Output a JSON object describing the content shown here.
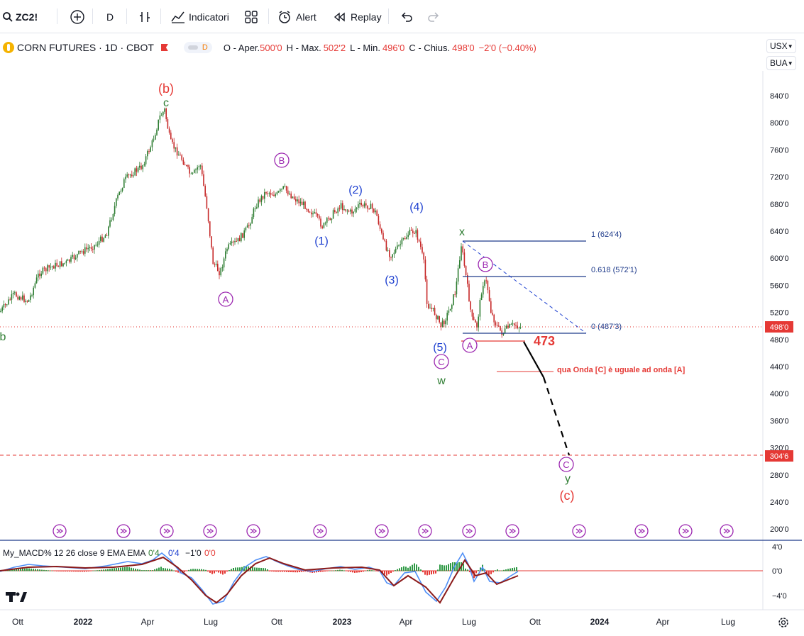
{
  "toolbar": {
    "symbol": "ZC2!",
    "interval": "D",
    "indicators_label": "Indicatori",
    "alert_label": "Alert",
    "replay_label": "Replay"
  },
  "legend": {
    "title": "CORN FUTURES · 1D · CBOT",
    "badge": "D",
    "o_label": "O - Aper.",
    "o_value": "500'0",
    "h_label": "H - Max.",
    "h_value": "502'2",
    "l_label": "L - Min.",
    "l_value": "496'0",
    "c_label": "C - Chius.",
    "c_value": "498'0",
    "change": "−2'0 (−0.40%)"
  },
  "right_controls": {
    "currency": "USX",
    "unit": "BUA"
  },
  "price_axis": {
    "ticks": [
      "840'0",
      "800'0",
      "760'0",
      "720'0",
      "680'0",
      "640'0",
      "600'0",
      "560'0",
      "520'0",
      "480'0",
      "440'0",
      "400'0",
      "360'0",
      "320'0",
      "280'0",
      "240'0",
      "200'0"
    ],
    "last_price": "498'0",
    "target_price": "304'6"
  },
  "time_axis": {
    "ticks": [
      "Ott",
      "2022",
      "Apr",
      "Lug",
      "Ott",
      "2023",
      "Apr",
      "Lug",
      "Ott",
      "2024",
      "Apr",
      "Lug"
    ]
  },
  "fib": {
    "level_1": "1 (624'4)",
    "level_0618": "0.618 (572'1)",
    "level_0": "0 (487'3)"
  },
  "annotations": {
    "b_red": "(b)",
    "c_green": "c",
    "b_green": "b",
    "B_circle_1": "B",
    "A_circle_1": "A",
    "w1": "(1)",
    "w2": "(2)",
    "w3": "(3)",
    "w4": "(4)",
    "w5": "(5)",
    "C_circle_1": "C",
    "w_green": "w",
    "x_green": "x",
    "B_circle_2": "B",
    "A_circle_2": "A",
    "level_473": "473",
    "note": "qua Onda [C] è uguale ad onda [A]",
    "C_circle_2": "C",
    "y_green": "y",
    "c_red": "(c)"
  },
  "indicator": {
    "name": "My_MACD% 12 26 close 9 EMA EMA",
    "v1": "0'4",
    "v2": "0'4",
    "v3": "−1'0",
    "v4": "0'0",
    "ticks": [
      "4'0",
      "0'0",
      "−4'0"
    ]
  },
  "colors": {
    "red_wave": "#e53935",
    "green_wave": "#2e7d32",
    "blue_wave": "#1e40d0",
    "purple_wave": "#9c27b0",
    "fib_line": "#1e3a8a",
    "candle": "#2e7d32",
    "candle_down": "#c62828",
    "last_price_badge": "#e53935"
  }
}
